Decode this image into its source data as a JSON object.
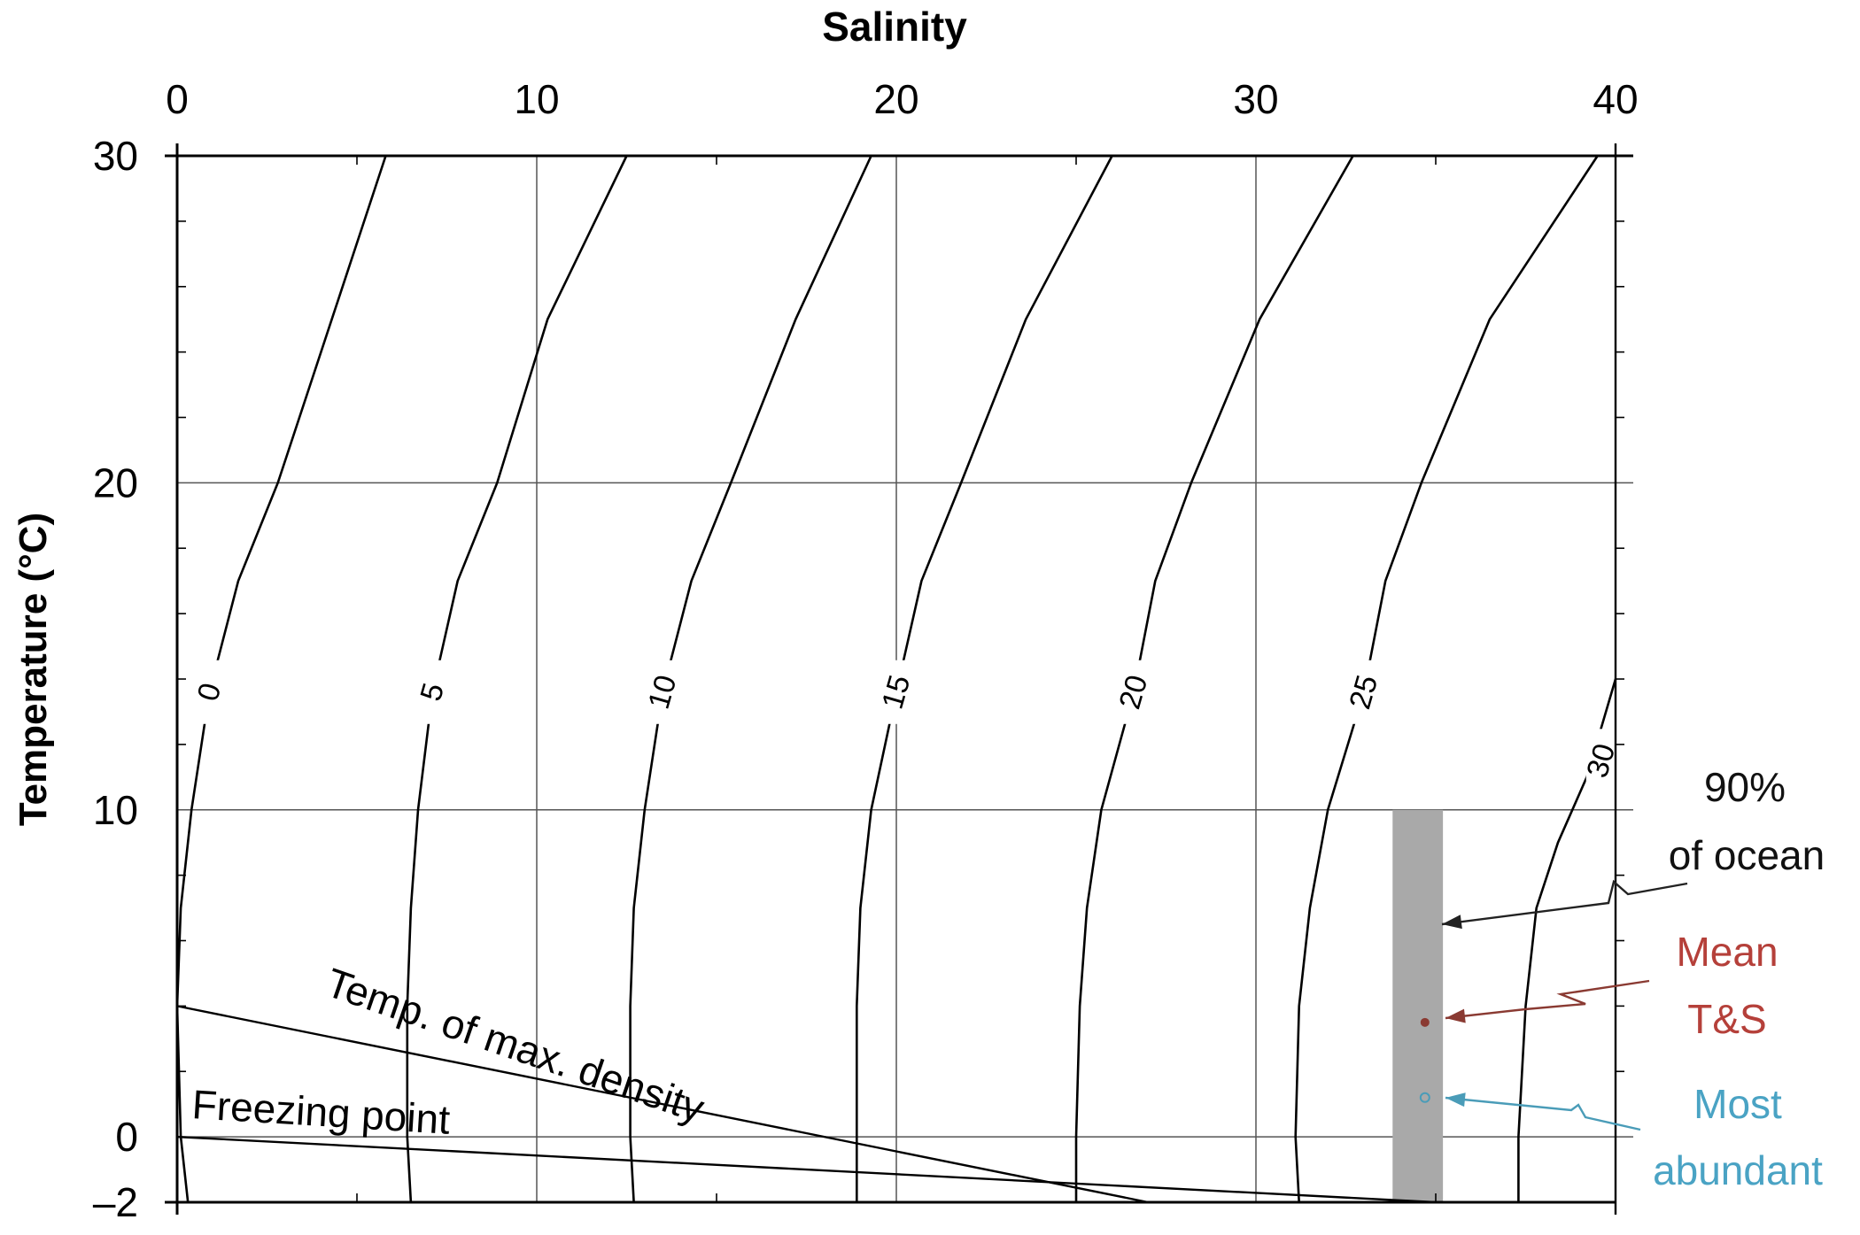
{
  "chart_data": {
    "type": "line",
    "title": "",
    "xlabel": "Salinity",
    "ylabel": "Temperature (°C)",
    "xlim": [
      0,
      40
    ],
    "ylim": [
      -2,
      30
    ],
    "x_axis_position": "top",
    "x_ticks": [
      {
        "value": 0,
        "label": "0"
      },
      {
        "value": 10,
        "label": "10"
      },
      {
        "value": 20,
        "label": "20"
      },
      {
        "value": 30,
        "label": "30"
      },
      {
        "value": 40,
        "label": "40"
      }
    ],
    "y_ticks": [
      {
        "value": 30,
        "label": "30"
      },
      {
        "value": 20,
        "label": "20"
      },
      {
        "value": 10,
        "label": "10"
      },
      {
        "value": 0,
        "label": "0"
      },
      {
        "value": -2,
        "label": "–2"
      }
    ],
    "grid": true,
    "density_contours": [
      {
        "label": "0",
        "label_at": [
          0.9,
          13.6
        ],
        "points": [
          [
            0.3,
            -2
          ],
          [
            0.1,
            0
          ],
          [
            0,
            4
          ],
          [
            0.1,
            7
          ],
          [
            0.4,
            10
          ],
          [
            0.9,
            13.6
          ],
          [
            1.7,
            17
          ],
          [
            2.8,
            20
          ],
          [
            4.3,
            25
          ],
          [
            5.8,
            30
          ]
        ]
      },
      {
        "label": "5",
        "label_at": [
          7.1,
          13.6
        ],
        "points": [
          [
            6.5,
            -2
          ],
          [
            6.4,
            0
          ],
          [
            6.4,
            4
          ],
          [
            6.5,
            7
          ],
          [
            6.7,
            10
          ],
          [
            7.1,
            13.6
          ],
          [
            7.8,
            17
          ],
          [
            8.9,
            20
          ],
          [
            10.3,
            25
          ],
          [
            12.5,
            30
          ]
        ]
      },
      {
        "label": "10",
        "label_at": [
          13.5,
          13.6
        ],
        "points": [
          [
            12.7,
            -2
          ],
          [
            12.6,
            0
          ],
          [
            12.6,
            4
          ],
          [
            12.7,
            7
          ],
          [
            13.0,
            10
          ],
          [
            13.5,
            13.6
          ],
          [
            14.3,
            17
          ],
          [
            15.4,
            20
          ],
          [
            17.2,
            25
          ],
          [
            19.3,
            30
          ]
        ]
      },
      {
        "label": "15",
        "label_at": [
          20.0,
          13.6
        ],
        "points": [
          [
            18.9,
            -2
          ],
          [
            18.9,
            0
          ],
          [
            18.9,
            4
          ],
          [
            19.0,
            7
          ],
          [
            19.3,
            10
          ],
          [
            20.0,
            13.6
          ],
          [
            20.7,
            17
          ],
          [
            21.8,
            20
          ],
          [
            23.6,
            25
          ],
          [
            26.0,
            30
          ]
        ]
      },
      {
        "label": "20",
        "label_at": [
          26.6,
          13.6
        ],
        "points": [
          [
            25.0,
            -2
          ],
          [
            25.0,
            0
          ],
          [
            25.1,
            4
          ],
          [
            25.3,
            7
          ],
          [
            25.7,
            10
          ],
          [
            26.6,
            13.6
          ],
          [
            27.2,
            17
          ],
          [
            28.2,
            20
          ],
          [
            30.1,
            25
          ],
          [
            32.7,
            30
          ]
        ]
      },
      {
        "label": "25",
        "label_at": [
          33.0,
          13.6
        ],
        "points": [
          [
            31.2,
            -2
          ],
          [
            31.1,
            0
          ],
          [
            31.2,
            4
          ],
          [
            31.5,
            7
          ],
          [
            32.0,
            10
          ],
          [
            33.0,
            13.6
          ],
          [
            33.6,
            17
          ],
          [
            34.6,
            20
          ],
          [
            36.5,
            25
          ],
          [
            39.5,
            30
          ]
        ]
      },
      {
        "label": "30",
        "label_at": [
          39.6,
          11.5
        ],
        "points": [
          [
            37.3,
            -2
          ],
          [
            37.3,
            0
          ],
          [
            37.5,
            4
          ],
          [
            37.8,
            7
          ],
          [
            38.4,
            9
          ],
          [
            39.2,
            11
          ],
          [
            40.0,
            14
          ]
        ]
      }
    ],
    "series": [
      {
        "name": "Temp. of max. density",
        "points": [
          [
            0,
            4
          ],
          [
            27,
            -2
          ]
        ]
      },
      {
        "name": "Freezing point",
        "points": [
          [
            0,
            0
          ],
          [
            35,
            -2
          ]
        ]
      }
    ],
    "ocean_range": {
      "label_lines": [
        "90%",
        "of ocean"
      ],
      "x": [
        33.8,
        35.2
      ],
      "y": [
        -2,
        10
      ]
    },
    "points": [
      {
        "name": "Mean T&S",
        "label_lines": [
          "Mean",
          "T&S"
        ],
        "x": 34.7,
        "y": 3.5,
        "color": "#8a3a32"
      },
      {
        "name": "Most abundant",
        "label_lines": [
          "Most",
          "abundant"
        ],
        "x": 34.7,
        "y": 1.2,
        "color": "#4a9cb8"
      }
    ]
  },
  "colors": {
    "contour": "#000000",
    "grid": "#555555",
    "band": "#a9a9a9",
    "ocean_arrow": "#222222",
    "mean_text": "#b5403a",
    "mean_arrow": "#8a3a32",
    "abundant_text": "#4aa3c4",
    "abundant_arrow": "#4a9cb8"
  }
}
